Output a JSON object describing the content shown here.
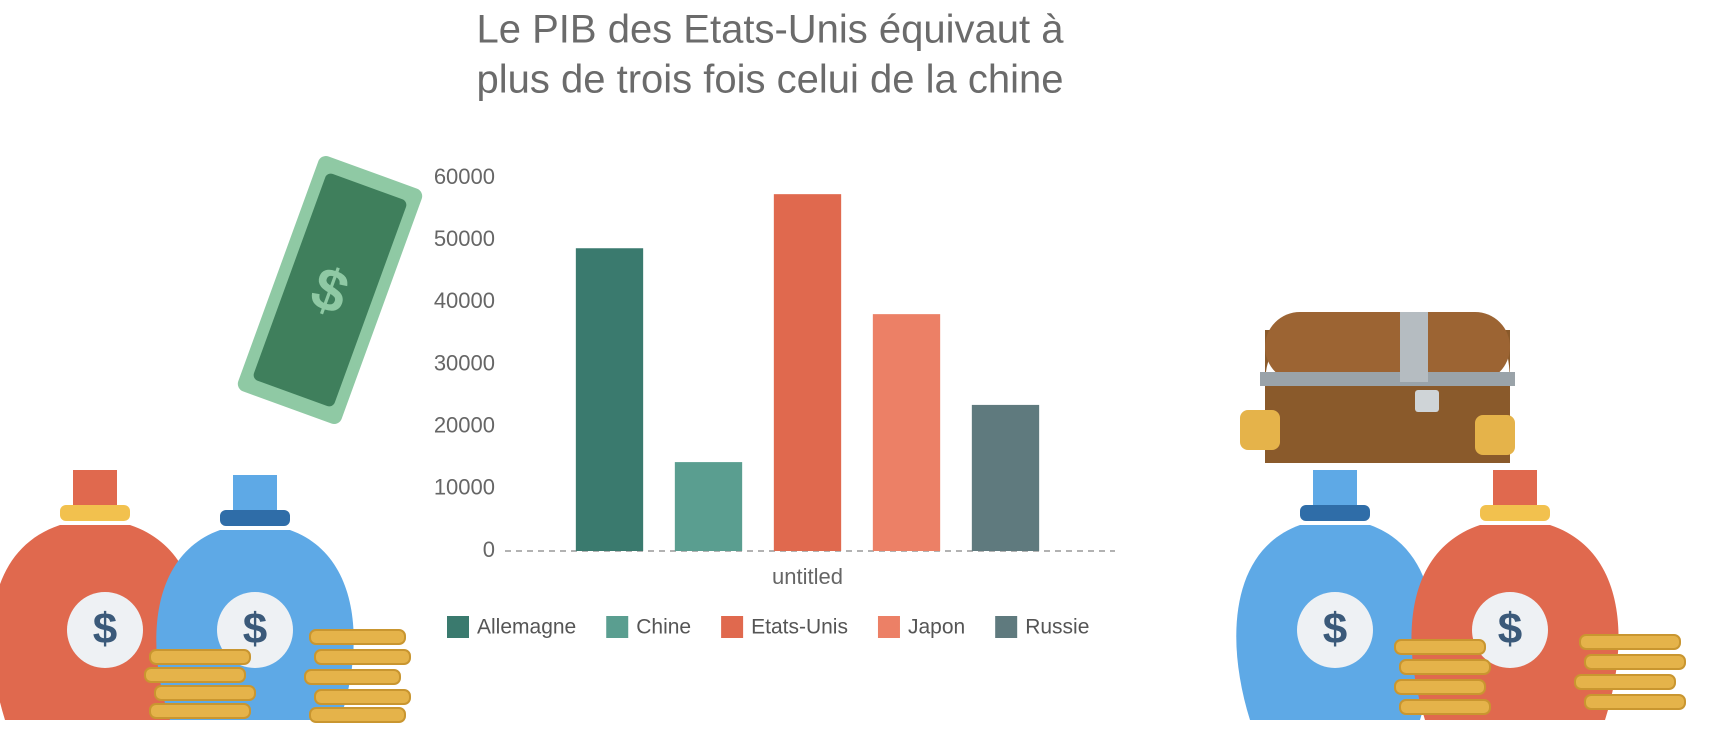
{
  "chart_data": {
    "type": "bar",
    "title": [
      "Le PIB des Etats-Unis équivaut à",
      "plus de trois fois celui de la chine"
    ],
    "categories": [
      "untitled"
    ],
    "series": [
      {
        "name": "Allemagne",
        "color": "#3a7a6e",
        "values": [
          48700
        ]
      },
      {
        "name": "Chine",
        "color": "#5a9e90",
        "values": [
          14300
        ]
      },
      {
        "name": "Etats-Unis",
        "color": "#e0694e",
        "values": [
          57400
        ]
      },
      {
        "name": "Japon",
        "color": "#ec8066",
        "values": [
          38100
        ]
      },
      {
        "name": "Russie",
        "color": "#5f7a7e",
        "values": [
          23500
        ]
      }
    ],
    "ylim": [
      0,
      60000
    ],
    "yticks": [
      0,
      10000,
      20000,
      30000,
      40000,
      50000,
      60000
    ],
    "grid": false,
    "legend": "bottom"
  }
}
